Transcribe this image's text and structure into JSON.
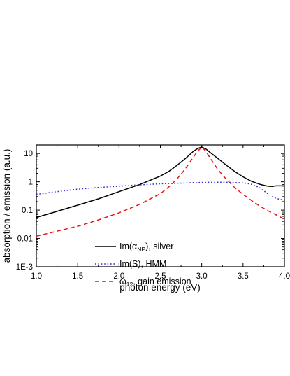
{
  "chart_data": {
    "type": "line",
    "xlabel": "photon energy (eV)",
    "ylabel": "absorption / emission (a.u.)",
    "xlim": [
      1.0,
      4.0
    ],
    "ylim": [
      0.001,
      20
    ],
    "yscale": "log",
    "xticks": [
      "1.0",
      "1.5",
      "2.0",
      "2.5",
      "3.0",
      "3.5",
      "4.0"
    ],
    "yticks": [
      "1E-3",
      "0.01",
      "0.1",
      "1",
      "10"
    ],
    "grid": false,
    "legend_position": "lower-center",
    "series": [
      {
        "legend": {
          "main": "Im(α",
          "sub": "NP",
          "tail": "), silver"
        },
        "color": "#000000",
        "style": "solid",
        "x": [
          1.0,
          1.25,
          1.5,
          1.75,
          2.0,
          2.25,
          2.5,
          2.6,
          2.7,
          2.8,
          2.9,
          2.95,
          3.0,
          3.05,
          3.1,
          3.2,
          3.3,
          3.4,
          3.5,
          3.6,
          3.7,
          3.8,
          3.85,
          3.9,
          4.0
        ],
        "values": [
          0.055,
          0.09,
          0.15,
          0.25,
          0.45,
          0.8,
          1.6,
          2.3,
          3.8,
          6.5,
          12.0,
          15.0,
          17.0,
          14.5,
          11.0,
          6.5,
          3.8,
          2.3,
          1.5,
          1.05,
          0.82,
          0.7,
          0.69,
          0.72,
          0.72
        ]
      },
      {
        "legend": {
          "main": "Im(S), HMM",
          "sub": "",
          "tail": ""
        },
        "color": "#2a2ad8",
        "style": "dotted",
        "x": [
          1.0,
          1.25,
          1.5,
          1.75,
          2.0,
          2.25,
          2.5,
          2.75,
          3.0,
          3.25,
          3.5,
          3.6,
          3.7,
          3.75,
          3.8,
          3.85,
          3.9,
          4.0
        ],
        "values": [
          0.36,
          0.45,
          0.55,
          0.63,
          0.7,
          0.78,
          0.85,
          0.9,
          0.95,
          0.97,
          0.92,
          0.82,
          0.62,
          0.48,
          0.38,
          0.3,
          0.26,
          0.22
        ]
      },
      {
        "legend": {
          "main": "ω",
          "sub": "12",
          "tail": ", gain emission"
        },
        "color": "#ee1111",
        "style": "dashed",
        "x": [
          1.0,
          1.25,
          1.5,
          1.75,
          2.0,
          2.25,
          2.5,
          2.6,
          2.7,
          2.8,
          2.9,
          2.95,
          3.0,
          3.05,
          3.1,
          3.2,
          3.3,
          3.4,
          3.5,
          3.6,
          3.7,
          3.8,
          3.9,
          4.0
        ],
        "values": [
          0.012,
          0.018,
          0.027,
          0.045,
          0.08,
          0.16,
          0.38,
          0.65,
          1.25,
          2.8,
          7.5,
          12.0,
          17.0,
          12.0,
          7.0,
          2.6,
          1.2,
          0.62,
          0.36,
          0.22,
          0.14,
          0.095,
          0.068,
          0.048
        ]
      }
    ]
  }
}
